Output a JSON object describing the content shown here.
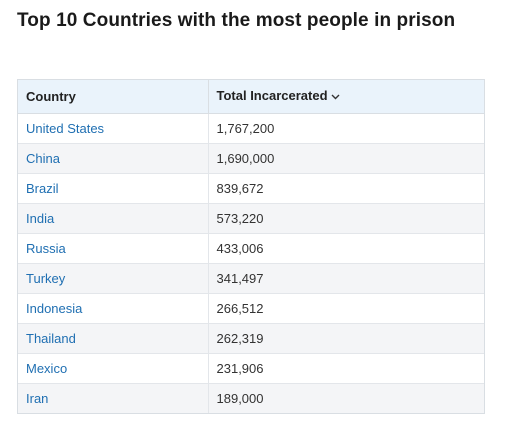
{
  "title": "Top 10 Countries with the most people in prison",
  "table": {
    "headers": {
      "country": "Country",
      "total": "Total Incarcerated"
    },
    "sort": {
      "column": "total",
      "direction": "descending",
      "icon": "chevron-down-icon"
    },
    "rows": [
      {
        "country": "United States",
        "total": "1,767,200"
      },
      {
        "country": "China",
        "total": "1,690,000"
      },
      {
        "country": "Brazil",
        "total": "839,672"
      },
      {
        "country": "India",
        "total": "573,220"
      },
      {
        "country": "Russia",
        "total": "433,006"
      },
      {
        "country": "Turkey",
        "total": "341,497"
      },
      {
        "country": "Indonesia",
        "total": "266,512"
      },
      {
        "country": "Thailand",
        "total": "262,319"
      },
      {
        "country": "Mexico",
        "total": "231,906"
      },
      {
        "country": "Iran",
        "total": "189,000"
      }
    ]
  },
  "colors": {
    "link": "#1f6fb2",
    "header_bg": "#eaf3fb",
    "stripe_bg": "#f4f5f7",
    "border": "#d9dee3"
  }
}
